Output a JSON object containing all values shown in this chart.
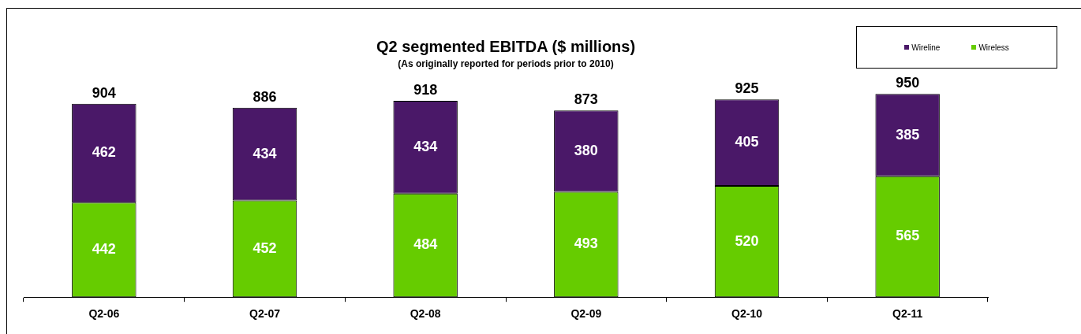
{
  "chart_data": {
    "type": "bar",
    "title": "Q2 segmented EBITDA ($ millions)",
    "subtitle": "(As originally reported for periods prior to 2010)",
    "categories": [
      "Q2-06",
      "Q2-07",
      "Q2-08",
      "Q2-09",
      "Q2-10",
      "Q2-11"
    ],
    "stacked": true,
    "data_labels": true,
    "legend": "top right",
    "grid": false,
    "series": [
      {
        "name": "Wireless",
        "color": "#66cc00",
        "values": [
          442,
          452,
          484,
          493,
          520,
          565
        ]
      },
      {
        "name": "Wireline",
        "color": "#4a1868",
        "values": [
          462,
          434,
          434,
          380,
          405,
          385
        ]
      }
    ],
    "totals": [
      "904",
      "886",
      "918",
      "873",
      "925",
      "950"
    ]
  }
}
